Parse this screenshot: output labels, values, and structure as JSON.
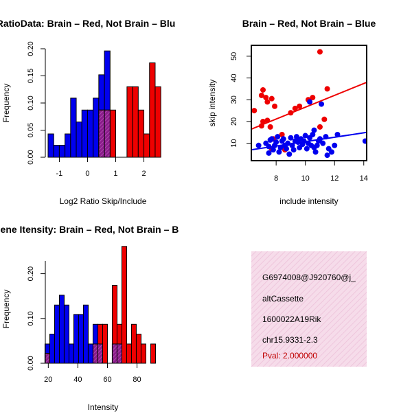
{
  "chart_data": [
    {
      "type": "bar",
      "title": "RatioData: Brain – Red, Not Brain – Blu",
      "xlabel": "Log2 Ratio Skip/Include",
      "ylabel": "Frequency",
      "xlim": [
        -1.4,
        2.45
      ],
      "ylim": [
        0,
        0.2
      ],
      "xticks": [
        "-1",
        "0",
        "1",
        "2"
      ],
      "yticks": [
        "0.00",
        "0.05",
        "0.10",
        "0.15",
        "0.20"
      ],
      "bin_width": 0.2,
      "series": [
        {
          "name": "Not Brain",
          "color": "#0000ee",
          "bins": [
            [
              -1.4,
              0.043
            ],
            [
              -1.2,
              0.022
            ],
            [
              -1.0,
              0.022
            ],
            [
              -0.8,
              0.043
            ],
            [
              -0.6,
              0.109
            ],
            [
              -0.4,
              0.065
            ],
            [
              -0.2,
              0.087
            ],
            [
              0.0,
              0.087
            ],
            [
              0.2,
              0.109
            ],
            [
              0.4,
              0.152
            ],
            [
              0.6,
              0.196
            ]
          ]
        },
        {
          "name": "Brain",
          "color": "#ee0000",
          "bins": [
            [
              0.4,
              0.087
            ],
            [
              0.6,
              0.087
            ],
            [
              0.8,
              0.087
            ],
            [
              1.4,
              0.13
            ],
            [
              1.6,
              0.13
            ],
            [
              1.8,
              0.087
            ],
            [
              2.0,
              0.043
            ],
            [
              2.2,
              0.174
            ],
            [
              2.4,
              0.13
            ]
          ]
        }
      ],
      "overlap_color": "#8b1c8b"
    },
    {
      "type": "scatter",
      "title": "Brain – Red, Not Brain – Blue",
      "xlabel": "include intensity",
      "ylabel": "skip intensity",
      "xlim": [
        6.3,
        14.2
      ],
      "ylim": [
        2,
        55
      ],
      "xticks": [
        "8",
        "10",
        "12",
        "14"
      ],
      "yticks": [
        "10",
        "20",
        "30",
        "40",
        "50"
      ],
      "series": [
        {
          "name": "Brain",
          "color": "#ee0000",
          "points": [
            [
              6.5,
              25
            ],
            [
              7.0,
              32
            ],
            [
              7.1,
              34.5
            ],
            [
              7.1,
              20
            ],
            [
              7.3,
              31
            ],
            [
              7.4,
              29
            ],
            [
              7.7,
              30.5
            ],
            [
              7.9,
              27
            ],
            [
              7.6,
              17.5
            ],
            [
              7.4,
              20.5
            ],
            [
              7.0,
              18
            ],
            [
              7.8,
              12
            ],
            [
              8.4,
              14
            ],
            [
              9.0,
              24
            ],
            [
              9.3,
              26
            ],
            [
              9.6,
              27
            ],
            [
              10.2,
              30
            ],
            [
              10.5,
              31
            ],
            [
              11.0,
              52
            ],
            [
              11.5,
              35
            ],
            [
              11.3,
              21
            ],
            [
              11.0,
              17.5
            ],
            [
              8.6,
              7
            ],
            [
              7.7,
              7.5
            ]
          ],
          "fit_line": [
            [
              6.3,
              16.5
            ],
            [
              14.2,
              38
            ]
          ]
        },
        {
          "name": "Not Brain",
          "color": "#0000ee",
          "points": [
            [
              6.8,
              9
            ],
            [
              7.3,
              10
            ],
            [
              7.5,
              8.5
            ],
            [
              7.6,
              11.5
            ],
            [
              7.7,
              12
            ],
            [
              7.8,
              7
            ],
            [
              7.9,
              9
            ],
            [
              8.0,
              10.5
            ],
            [
              8.1,
              13
            ],
            [
              8.2,
              6
            ],
            [
              8.3,
              8
            ],
            [
              8.4,
              11
            ],
            [
              8.5,
              12
            ],
            [
              8.6,
              9
            ],
            [
              8.7,
              7.5
            ],
            [
              8.8,
              10
            ],
            [
              9.0,
              12.5
            ],
            [
              9.1,
              9
            ],
            [
              9.2,
              7
            ],
            [
              9.3,
              11
            ],
            [
              9.4,
              13
            ],
            [
              9.5,
              10.5
            ],
            [
              9.6,
              8
            ],
            [
              9.7,
              12
            ],
            [
              9.8,
              9.5
            ],
            [
              9.9,
              11
            ],
            [
              10.0,
              13.5
            ],
            [
              10.1,
              7.5
            ],
            [
              10.2,
              10
            ],
            [
              10.3,
              12.5
            ],
            [
              10.4,
              9
            ],
            [
              10.5,
              14
            ],
            [
              10.6,
              8
            ],
            [
              10.7,
              6
            ],
            [
              10.8,
              9
            ],
            [
              10.9,
              11
            ],
            [
              11.0,
              12
            ],
            [
              11.1,
              28
            ],
            [
              11.2,
              10
            ],
            [
              11.4,
              13
            ],
            [
              11.6,
              7.5
            ],
            [
              11.8,
              6
            ],
            [
              12.0,
              9
            ],
            [
              12.2,
              14
            ],
            [
              10.3,
              29
            ],
            [
              9.4,
              11.5
            ],
            [
              10.6,
              16
            ],
            [
              14.1,
              11
            ],
            [
              7.5,
              5.5
            ],
            [
              8.9,
              5
            ],
            [
              11.5,
              4.5
            ]
          ],
          "fit_line": [
            [
              6.3,
              7
            ],
            [
              14.2,
              15
            ]
          ]
        }
      ]
    },
    {
      "type": "bar",
      "title": "Gene Itensity: Brain – Red, Not Brain – B",
      "xlabel": "Intensity",
      "ylabel": "Frequency",
      "xlim": [
        18,
        96
      ],
      "ylim": [
        0,
        0.25
      ],
      "xticks": [
        "20",
        "40",
        "60",
        "80"
      ],
      "yticks": [
        "0.00",
        "0.10",
        "0.20"
      ],
      "bin_width": 3.25,
      "series": [
        {
          "name": "Not Brain",
          "color": "#0000ee",
          "bins": [
            [
              17.75,
              0.043
            ],
            [
              21.0,
              0.065
            ],
            [
              24.25,
              0.13
            ],
            [
              27.5,
              0.152
            ],
            [
              30.75,
              0.13
            ],
            [
              34.0,
              0.043
            ],
            [
              37.25,
              0.109
            ],
            [
              40.5,
              0.109
            ],
            [
              43.75,
              0.13
            ],
            [
              47.0,
              0.043
            ],
            [
              50.25,
              0.087
            ],
            [
              53.5,
              0.043
            ],
            [
              63.25,
              0.043
            ],
            [
              66.5,
              0.043
            ]
          ]
        },
        {
          "name": "Brain",
          "color": "#ee0000",
          "bins": [
            [
              17.75,
              0.022
            ],
            [
              50.25,
              0.043
            ],
            [
              53.5,
              0.087
            ],
            [
              56.75,
              0.087
            ],
            [
              63.25,
              0.174
            ],
            [
              66.5,
              0.087
            ],
            [
              69.75,
              0.261
            ],
            [
              73.0,
              0.043
            ],
            [
              76.25,
              0.087
            ],
            [
              79.5,
              0.065
            ],
            [
              82.75,
              0.043
            ],
            [
              89.25,
              0.043
            ]
          ]
        }
      ],
      "overlap_color": "#8b1c8b"
    }
  ],
  "info_panel": {
    "gene_id": "G6974008@J920760@j_",
    "event_type": "altCassette",
    "gene_name": "1600022A19Rik",
    "location": "chr15.9331-2.3",
    "pval": "Pval: 2.000000"
  }
}
